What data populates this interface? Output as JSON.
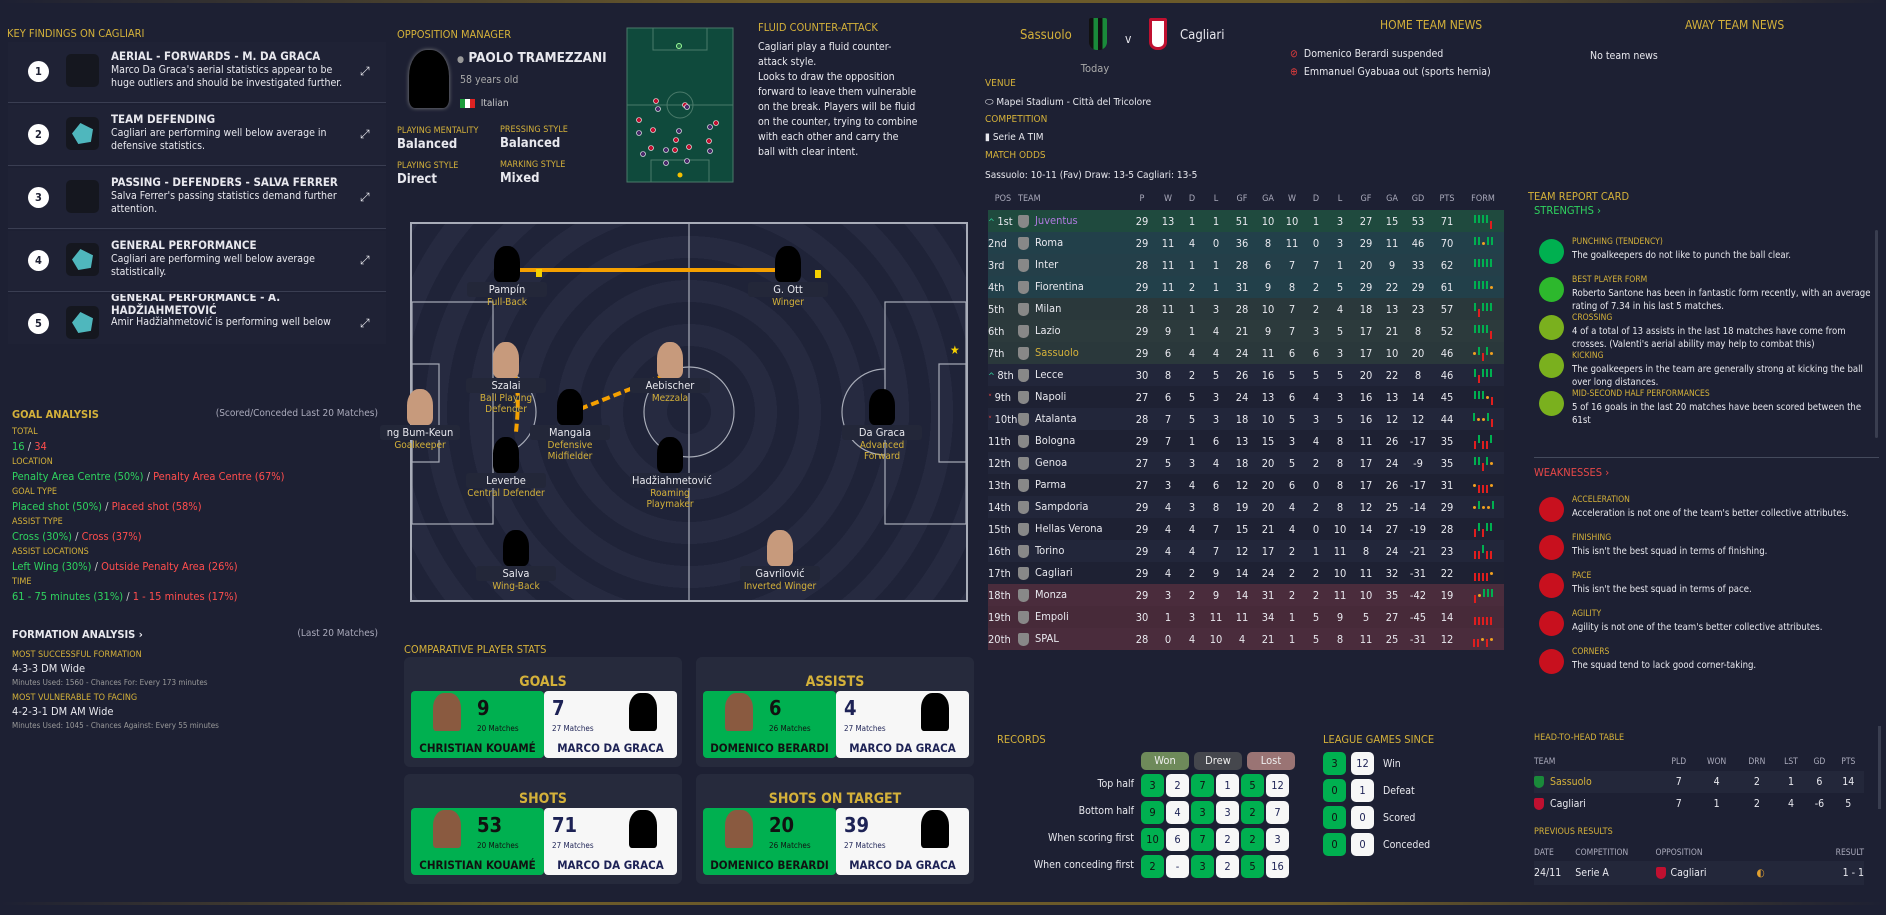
{
  "key_findings": {
    "title": "KEY FINDINGS ON CAGLIARI",
    "items": [
      {
        "num": "1",
        "icon": "scatter-plot-icon",
        "title": "AERIAL - FORWARDS - M. DA GRACA",
        "desc": "Marco Da Graca's aerial statistics appear to be huge outliers and should be investigated further."
      },
      {
        "num": "2",
        "icon": "radar-chart-icon",
        "title": "TEAM DEFENDING",
        "desc": "Cagliari are performing well below average in defensive statistics."
      },
      {
        "num": "3",
        "icon": "scatter-plot-icon",
        "title": "PASSING - DEFENDERS - SALVA FERRER",
        "desc": "Salva Ferrer's passing statistics demand further attention."
      },
      {
        "num": "4",
        "icon": "radar-chart-icon",
        "title": "GENERAL PERFORMANCE",
        "desc": "Cagliari are performing well below average statistically."
      },
      {
        "num": "5",
        "icon": "radar-chart-icon",
        "title": "GENERAL PERFORMANCE - A. HADŽIAHMETOVIĆ",
        "desc": "Amir Hadžiahmetović is performing well below"
      }
    ]
  },
  "goal_analysis": {
    "title": "GOAL ANALYSIS",
    "subtitle": "(Scored/Conceded Last 20 Matches)",
    "rows": [
      {
        "label": "TOTAL",
        "scored": "16",
        "conceded": "34"
      },
      {
        "label": "LOCATION",
        "scored": "Penalty Area Centre (50%)",
        "conceded": "Penalty Area Centre (67%)"
      },
      {
        "label": "GOAL TYPE",
        "scored": "Placed shot (50%)",
        "conceded": "Placed shot (58%)"
      },
      {
        "label": "ASSIST TYPE",
        "scored": "Cross (30%)",
        "conceded": "Cross (37%)"
      },
      {
        "label": "ASSIST LOCATIONS",
        "scored": "Left Wing (30%)",
        "conceded": "Outside Penalty Area (26%)"
      },
      {
        "label": "TIME",
        "scored": "61 - 75 minutes (31%)",
        "conceded": "1 - 15 minutes (17%)"
      }
    ]
  },
  "formation_analysis": {
    "title": "FORMATION ANALYSIS",
    "subtitle": "(Last 20 Matches)",
    "success_label": "MOST SUCCESSFUL FORMATION",
    "success": "4-3-3 DM Wide",
    "success_note": "Minutes Used: 1560 - Chances For: Every 173 minutes",
    "vuln_label": "MOST VULNERABLE TO FACING",
    "vuln": "4-2-3-1 DM AM Wide",
    "vuln_note": "Minutes Used: 1045 - Chances Against: Every 55 minutes"
  },
  "manager": {
    "title": "OPPOSITION MANAGER",
    "name": "PAOLO TRAMEZZANI",
    "age": "58 years old",
    "nationality": "Italian",
    "mentality_label": "PLAYING MENTALITY",
    "mentality": "Balanced",
    "pressing_label": "PRESSING STYLE",
    "pressing": "Balanced",
    "style_label": "PLAYING STYLE",
    "style": "Direct",
    "marking_label": "MARKING STYLE",
    "marking": "Mixed"
  },
  "tactic": {
    "title": "FLUID COUNTER-ATTACK",
    "desc": "Cagliari play a fluid counter-attack style.\nLooks to draw the opposition forward to leave them vulnerable on the break. Players will be fluid on the counter, trying to combine with each other and carry the ball with clear intent."
  },
  "players": [
    {
      "name": "Pampín",
      "role": "Full-Back"
    },
    {
      "name": "G. Ott",
      "role": "Winger"
    },
    {
      "name": "Szalai",
      "role": "Ball Playing Defender"
    },
    {
      "name": "Mangala",
      "role": "Defensive Midfielder"
    },
    {
      "name": "Aebischer",
      "role": "Mezzala"
    },
    {
      "name": "ng Bum-Keun",
      "role": "Goalkeeper"
    },
    {
      "name": "Da Graca",
      "role": "Advanced Forward"
    },
    {
      "name": "Leverbe",
      "role": "Central Defender"
    },
    {
      "name": "Hadžiahmetović",
      "role": "Roaming Playmaker"
    },
    {
      "name": "Salva",
      "role": "Wing-Back"
    },
    {
      "name": "Gavrilović",
      "role": "Inverted Winger"
    }
  ],
  "comparative": {
    "title": "COMPARATIVE PLAYER STATS",
    "cards": [
      {
        "title": "GOALS",
        "a": {
          "value": "9",
          "matches": "20 Matches",
          "name": "CHRISTIAN KOUAMÉ"
        },
        "b": {
          "value": "7",
          "matches": "27 Matches",
          "name": "MARCO DA GRACA"
        }
      },
      {
        "title": "ASSISTS",
        "a": {
          "value": "6",
          "matches": "26 Matches",
          "name": "DOMENICO BERARDI"
        },
        "b": {
          "value": "4",
          "matches": "27 Matches",
          "name": "MARCO DA GRACA"
        }
      },
      {
        "title": "SHOTS",
        "a": {
          "value": "53",
          "matches": "20 Matches",
          "name": "CHRISTIAN KOUAMÉ"
        },
        "b": {
          "value": "71",
          "matches": "27 Matches",
          "name": "MARCO DA GRACA"
        }
      },
      {
        "title": "SHOTS ON TARGET",
        "a": {
          "value": "20",
          "matches": "26 Matches",
          "name": "DOMENICO BERARDI"
        },
        "b": {
          "value": "39",
          "matches": "27 Matches",
          "name": "MARCO DA GRACA"
        }
      }
    ]
  },
  "match": {
    "home": "Sassuolo",
    "vs": "v",
    "away": "Cagliari",
    "date": "Today",
    "venue_label": "VENUE",
    "venue": "Mapei Stadium - Città del Tricolore",
    "competition_label": "COMPETITION",
    "competition": "Serie A TIM",
    "odds_label": "MATCH ODDS",
    "odds": "Sassuolo: 10-11 (Fav) Draw: 13-5 Cagliari: 13-5"
  },
  "news": {
    "home_title": "HOME TEAM NEWS",
    "home": [
      {
        "icon": "suspended-icon",
        "text": "Domenico Berardi suspended"
      },
      {
        "icon": "injury-icon",
        "text": "Emmanuel Gyabuaa out (sports hernia)"
      }
    ],
    "away_title": "AWAY TEAM NEWS",
    "away": "No team news"
  },
  "league_table": {
    "headers": [
      "POS",
      "TEAM",
      "P",
      "W",
      "D",
      "L",
      "GF",
      "GA",
      "W",
      "D",
      "L",
      "GF",
      "GA",
      "GD",
      "PTS",
      "FORM"
    ],
    "rows": [
      [
        "1st",
        "Juventus",
        29,
        13,
        1,
        1,
        51,
        10,
        10,
        1,
        3,
        27,
        15,
        53,
        71,
        "WWWWL",
        "up"
      ],
      [
        "2nd",
        "Roma",
        29,
        11,
        4,
        0,
        36,
        8,
        11,
        0,
        3,
        29,
        11,
        46,
        70,
        "WWDWW",
        ""
      ],
      [
        "3rd",
        "Inter",
        28,
        11,
        1,
        1,
        28,
        6,
        7,
        7,
        1,
        20,
        9,
        33,
        62,
        "WWWWW",
        ""
      ],
      [
        "4th",
        "Fiorentina",
        29,
        11,
        2,
        1,
        31,
        9,
        8,
        2,
        5,
        29,
        22,
        29,
        61,
        "WWWWD",
        ""
      ],
      [
        "5th",
        "Milan",
        28,
        11,
        1,
        3,
        28,
        10,
        7,
        2,
        4,
        18,
        13,
        23,
        57,
        "WLWWW",
        ""
      ],
      [
        "6th",
        "Lazio",
        29,
        9,
        1,
        4,
        21,
        9,
        7,
        3,
        5,
        17,
        21,
        8,
        52,
        "WWWWL",
        ""
      ],
      [
        "7th",
        "Sassuolo",
        29,
        6,
        4,
        4,
        24,
        11,
        6,
        6,
        3,
        17,
        10,
        20,
        46,
        "DWLWD",
        ""
      ],
      [
        "8th",
        "Lecce",
        30,
        8,
        2,
        5,
        26,
        16,
        5,
        5,
        5,
        20,
        22,
        8,
        46,
        "WLWWW",
        "up"
      ],
      [
        "9th",
        "Napoli",
        27,
        6,
        5,
        3,
        24,
        13,
        6,
        4,
        3,
        16,
        13,
        14,
        45,
        "WWWDL",
        "down"
      ],
      [
        "10th",
        "Atalanta",
        28,
        7,
        5,
        3,
        18,
        10,
        5,
        3,
        5,
        16,
        12,
        12,
        44,
        "WDDWL",
        "down"
      ],
      [
        "11th",
        "Bologna",
        29,
        7,
        1,
        6,
        13,
        15,
        3,
        4,
        8,
        11,
        26,
        -17,
        35,
        "LWLLW",
        ""
      ],
      [
        "12th",
        "Genoa",
        27,
        5,
        3,
        4,
        18,
        20,
        5,
        2,
        8,
        17,
        24,
        -9,
        35,
        "WWLWD",
        ""
      ],
      [
        "13th",
        "Parma",
        27,
        3,
        4,
        6,
        12,
        20,
        6,
        0,
        8,
        17,
        26,
        -17,
        31,
        "DLLLD",
        ""
      ],
      [
        "14th",
        "Sampdoria",
        29,
        4,
        3,
        8,
        19,
        20,
        4,
        2,
        8,
        12,
        25,
        -14,
        29,
        "DWDDW",
        ""
      ],
      [
        "15th",
        "Hellas Verona",
        29,
        4,
        4,
        7,
        15,
        21,
        4,
        0,
        10,
        14,
        27,
        -19,
        28,
        "LWLWW",
        ""
      ],
      [
        "16th",
        "Torino",
        29,
        4,
        4,
        7,
        12,
        17,
        2,
        1,
        11,
        8,
        24,
        -21,
        23,
        "LLWLL",
        ""
      ],
      [
        "17th",
        "Cagliari",
        29,
        4,
        2,
        9,
        14,
        24,
        2,
        2,
        10,
        11,
        32,
        -31,
        22,
        "LLLLD",
        ""
      ],
      [
        "18th",
        "Monza",
        29,
        3,
        2,
        9,
        14,
        31,
        2,
        2,
        11,
        10,
        35,
        -42,
        19,
        "LDWWW",
        ""
      ],
      [
        "19th",
        "Empoli",
        30,
        1,
        3,
        11,
        11,
        34,
        1,
        5,
        9,
        5,
        27,
        -45,
        14,
        "LLLLL",
        ""
      ],
      [
        "20th",
        "SPAL",
        28,
        0,
        4,
        10,
        4,
        21,
        1,
        5,
        8,
        11,
        25,
        -31,
        12,
        "LLDLD",
        ""
      ]
    ]
  },
  "report_card": {
    "title": "TEAM REPORT CARD",
    "strengths_label": "STRENGTHS",
    "weaknesses_label": "WEAKNESSES",
    "strengths": [
      {
        "icon": "glove-icon",
        "title": "PUNCHING (TENDENCY)",
        "desc": "The goalkeepers do not like to punch the ball clear."
      },
      {
        "icon": "star-icon",
        "title": "BEST PLAYER FORM",
        "desc": "Roberto Santone has been in fantastic form recently, with an average rating of 7.34 in his last 5 matches."
      },
      {
        "icon": "cross-icon",
        "title": "CROSSING",
        "desc": "4 of a total of 13 assists in the last 18 matches have come from crosses. (Valenti's aerial ability may help to combat this)"
      },
      {
        "icon": "kick-icon",
        "title": "KICKING",
        "desc": "The goalkeepers in the team are generally strong at kicking the ball over long distances."
      },
      {
        "icon": "clock-icon",
        "title": "MID-SECOND HALF PERFORMANCES",
        "desc": "5 of 16 goals in the last 20 matches have been scored between the 61st"
      }
    ],
    "weaknesses": [
      {
        "icon": "boot-icon",
        "title": "ACCELERATION",
        "desc": "Acceleration is not one of the team's better collective attributes."
      },
      {
        "icon": "goal-icon",
        "title": "FINISHING",
        "desc": "This isn't the best squad in terms of finishing."
      },
      {
        "icon": "boot-icon",
        "title": "PACE",
        "desc": "This isn't the best squad in terms of pace."
      },
      {
        "icon": "agility-icon",
        "title": "AGILITY",
        "desc": "Agility is not one of the team's better collective attributes."
      },
      {
        "icon": "corner-icon",
        "title": "CORNERS",
        "desc": "The squad tend to lack good corner-taking."
      }
    ]
  },
  "records": {
    "title": "RECORDS",
    "cols": [
      "Won",
      "Drew",
      "Lost"
    ],
    "rows": [
      {
        "label": "Top half",
        "v": [
          "3",
          "2",
          "7",
          "1",
          "5",
          "12"
        ]
      },
      {
        "label": "Bottom half",
        "v": [
          "9",
          "4",
          "3",
          "3",
          "2",
          "7"
        ]
      },
      {
        "label": "When scoring first",
        "v": [
          "10",
          "6",
          "7",
          "2",
          "2",
          "3"
        ]
      },
      {
        "label": "When conceding first",
        "v": [
          "2",
          "-",
          "3",
          "2",
          "5",
          "16"
        ]
      }
    ]
  },
  "league_since": {
    "title": "LEAGUE GAMES SINCE",
    "rows": [
      {
        "a": "3",
        "b": "12",
        "label": "Win"
      },
      {
        "a": "0",
        "b": "1",
        "label": "Defeat"
      },
      {
        "a": "0",
        "b": "0",
        "label": "Scored"
      },
      {
        "a": "0",
        "b": "0",
        "label": "Conceded"
      }
    ]
  },
  "h2h": {
    "title": "HEAD-TO-HEAD TABLE",
    "headers": [
      "TEAM",
      "PLD",
      "WON",
      "DRN",
      "LST",
      "GD",
      "PTS"
    ],
    "rows": [
      [
        "Sassuolo",
        "7",
        "4",
        "2",
        "1",
        "6",
        "14"
      ],
      [
        "Cagliari",
        "7",
        "1",
        "2",
        "4",
        "-6",
        "5"
      ]
    ],
    "prev_title": "PREVIOUS RESULTS",
    "prev_headers": [
      "DATE",
      "COMPETITION",
      "OPPOSITION",
      "RESULT"
    ],
    "prev": [
      {
        "date": "24/11",
        "competition": "Serie A",
        "opposition": "Cagliari",
        "result": "1 - 1"
      }
    ]
  },
  "colors": {
    "gold": "#d4b13a",
    "win": "#00b050",
    "loss": "#e01e1e",
    "draw": "#f0a020",
    "bg": "#1d2033"
  }
}
